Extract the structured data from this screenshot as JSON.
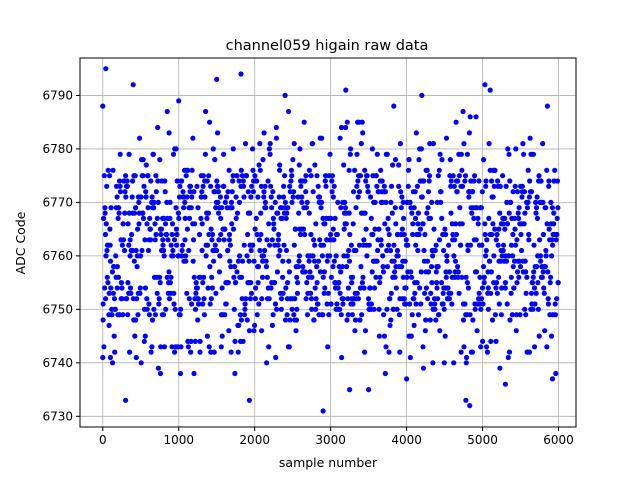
{
  "chart_data": {
    "type": "scatter",
    "title": "channel059 higain raw data",
    "xlabel": "sample number",
    "ylabel": "ADC Code",
    "xlim": [
      -300,
      6230
    ],
    "ylim": [
      6728,
      6797
    ],
    "xticks": [
      0,
      1000,
      2000,
      3000,
      4000,
      5000,
      6000
    ],
    "yticks": [
      6730,
      6740,
      6750,
      6760,
      6770,
      6780,
      6790
    ],
    "grid": true,
    "marker_color": "#0000ff",
    "series": [
      {
        "sample_count": 6000,
        "bulk_range": [
          6741,
          6782
        ],
        "core_range": [
          6748,
          6776
        ],
        "highlighted_points": [
          {
            "x": 40,
            "y": 6795
          },
          {
            "x": 0,
            "y": 6788
          },
          {
            "x": 400,
            "y": 6792
          },
          {
            "x": 1000,
            "y": 6789
          },
          {
            "x": 1500,
            "y": 6793
          },
          {
            "x": 1820,
            "y": 6794
          },
          {
            "x": 2400,
            "y": 6790
          },
          {
            "x": 3200,
            "y": 6791
          },
          {
            "x": 5030,
            "y": 6792
          },
          {
            "x": 5100,
            "y": 6791
          },
          {
            "x": 4200,
            "y": 6790
          },
          {
            "x": 300,
            "y": 6733
          },
          {
            "x": 760,
            "y": 6738
          },
          {
            "x": 1930,
            "y": 6733
          },
          {
            "x": 2900,
            "y": 6731
          },
          {
            "x": 3250,
            "y": 6735
          },
          {
            "x": 3500,
            "y": 6735
          },
          {
            "x": 4000,
            "y": 6737
          },
          {
            "x": 4780,
            "y": 6733
          },
          {
            "x": 4830,
            "y": 6732
          },
          {
            "x": 5300,
            "y": 6736
          },
          {
            "x": 5920,
            "y": 6737
          },
          {
            "x": 0,
            "y": 6741
          },
          {
            "x": 100,
            "y": 6741
          }
        ]
      }
    ]
  }
}
